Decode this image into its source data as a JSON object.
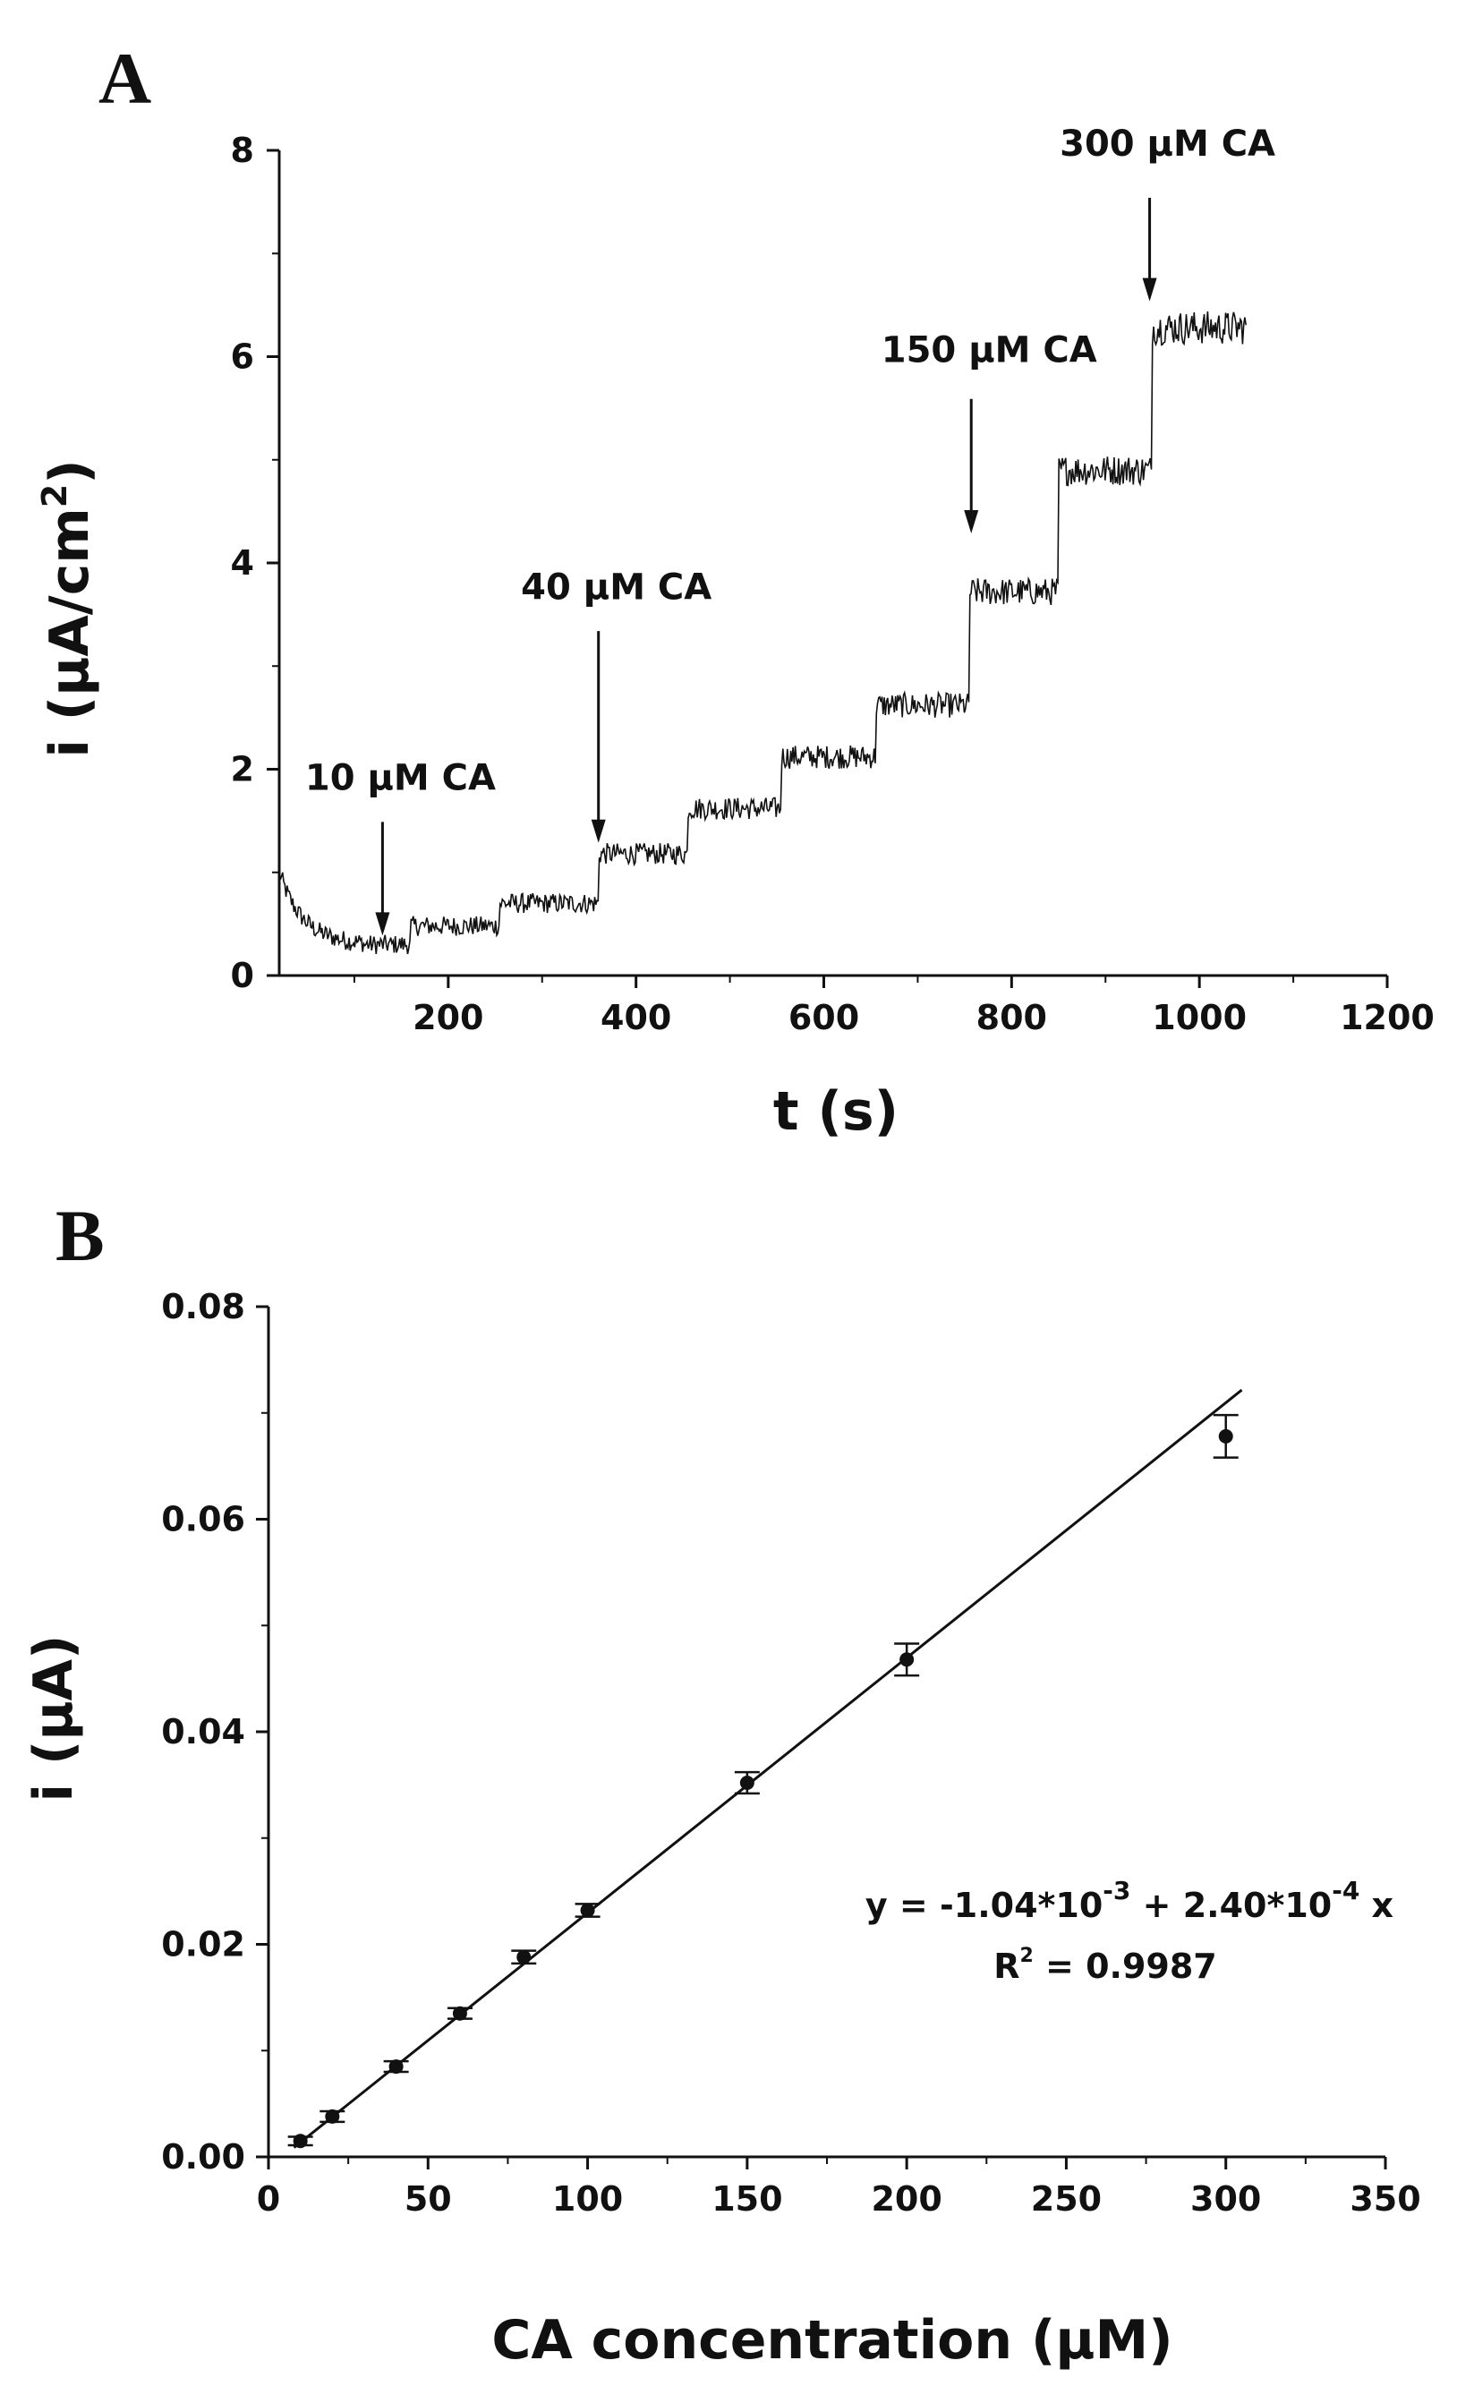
{
  "chart_data": [
    {
      "panel": "A",
      "type": "line",
      "xlabel": "t (s)",
      "ylabel_main": "i (μA/cm",
      "ylabel_sup": "2",
      "ylabel_close": ")",
      "xlim": [
        20,
        1200
      ],
      "ylim": [
        0,
        8
      ],
      "xticks": [
        200,
        400,
        600,
        800,
        1000,
        1200
      ],
      "yticks": [
        0,
        2,
        4,
        6,
        8
      ],
      "grid": false,
      "legend": "none",
      "color": "#111111",
      "series": [
        {
          "steps": [
            {
              "t_start": 20,
              "t_end": 160,
              "level": 0.3
            },
            {
              "t_start": 160,
              "t_end": 255,
              "level": 0.48
            },
            {
              "t_start": 255,
              "t_end": 360,
              "level": 0.7
            },
            {
              "t_start": 360,
              "t_end": 455,
              "level": 1.18
            },
            {
              "t_start": 455,
              "t_end": 555,
              "level": 1.62
            },
            {
              "t_start": 555,
              "t_end": 655,
              "level": 2.12
            },
            {
              "t_start": 655,
              "t_end": 755,
              "level": 2.62
            },
            {
              "t_start": 755,
              "t_end": 850,
              "level": 3.72
            },
            {
              "t_start": 850,
              "t_end": 950,
              "level": 4.9
            },
            {
              "t_start": 950,
              "t_end": 1050,
              "level": 6.28
            }
          ],
          "initial_decay": {
            "t": 20,
            "value": 1.0
          }
        }
      ],
      "annotations": [
        {
          "text": "10 μM CA",
          "arrow_t": 130,
          "arrow_i": 0.3
        },
        {
          "text": "40 μM CA",
          "arrow_t": 360,
          "arrow_i": 1.2
        },
        {
          "text": "150 μM CA",
          "arrow_t": 757,
          "arrow_i": 4.2
        },
        {
          "text": "300 μM CA",
          "arrow_t": 947,
          "arrow_i": 6.45
        }
      ]
    },
    {
      "panel": "B",
      "type": "scatter",
      "xlabel": "CA concentration (μM)",
      "ylabel": "i (μA)",
      "xlim": [
        0,
        350
      ],
      "ylim": [
        0,
        0.08
      ],
      "xticks": [
        0,
        50,
        100,
        150,
        200,
        250,
        300,
        350
      ],
      "yticks": [
        0.0,
        0.02,
        0.04,
        0.06,
        0.08
      ],
      "ytick_labels": [
        "0.00",
        "0.02",
        "0.04",
        "0.06",
        "0.08"
      ],
      "grid": false,
      "legend": "none",
      "color": "#111111",
      "series": [
        {
          "x": [
            10,
            20,
            40,
            60,
            80,
            100,
            150,
            200,
            300
          ],
          "y": [
            0.0015,
            0.0038,
            0.0085,
            0.0135,
            0.0188,
            0.0232,
            0.0352,
            0.0468,
            0.0678
          ],
          "error": [
            0.0004,
            0.0005,
            0.0005,
            0.0005,
            0.0006,
            0.0006,
            0.001,
            0.0015,
            0.002
          ]
        }
      ],
      "fit": {
        "intercept": -0.00104,
        "slope": 0.00024,
        "x_range": [
          8,
          305
        ]
      },
      "equation": {
        "prefix": "y = -1.04*10",
        "exp1": "-3",
        "middle": " + 2.40*10",
        "exp2": "-4",
        "suffix": " x"
      },
      "r2": {
        "label": "R",
        "sup": "2",
        "value": " = 0.9987"
      }
    }
  ]
}
